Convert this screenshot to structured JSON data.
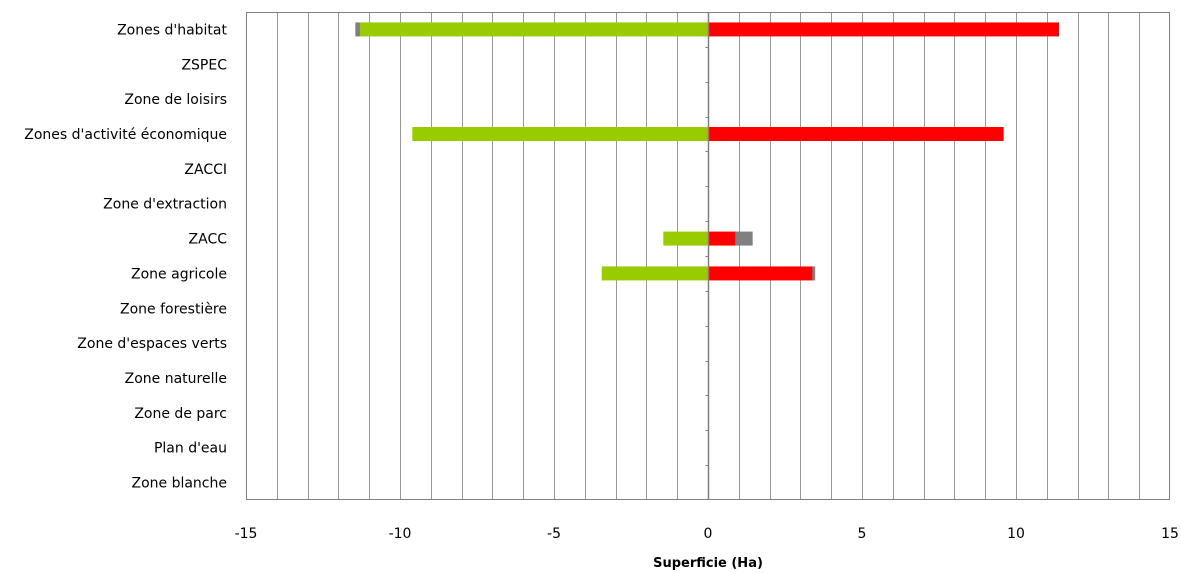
{
  "chart_data": {
    "type": "bar",
    "orientation": "horizontal",
    "stacked": true,
    "categories": [
      "Zones d'habitat",
      "ZSPEC",
      "Zone de loisirs",
      "Zones d'activité économique",
      "ZACCI",
      "Zone d'extraction",
      "ZACC",
      "Zone agricole",
      "Zone forestière",
      "Zone d'espaces verts",
      "Zone naturelle",
      "Zone de parc",
      "Plan d'eau",
      "Zone blanche"
    ],
    "series": [
      {
        "color": "#99cc00",
        "values": [
          -11.3,
          0,
          0,
          -9.6,
          0,
          0,
          -1.45,
          -3.45,
          0,
          0,
          0,
          0,
          0,
          0
        ]
      },
      {
        "color": "#808080",
        "values": [
          -0.15,
          0,
          0,
          0,
          0,
          0,
          0,
          0,
          0,
          0,
          0,
          0,
          0,
          0
        ]
      },
      {
        "color": "#ff0000",
        "values": [
          11.4,
          0,
          0,
          9.6,
          0,
          0,
          0.9,
          3.4,
          0,
          0,
          0,
          0,
          0,
          0
        ]
      },
      {
        "color": "#808080",
        "values": [
          0,
          0,
          0,
          0,
          0,
          0,
          0.55,
          0.08,
          0,
          0,
          0,
          0,
          0,
          0
        ]
      }
    ],
    "xlim": [
      -15,
      15
    ],
    "xticks": [
      "-15",
      "-10",
      "-5",
      "0",
      "5",
      "10",
      "15"
    ],
    "xlabel": "Superficie (Ha)",
    "ylabel": "",
    "title": "",
    "grid": true,
    "colors": {
      "grid": "#999999",
      "axis": "#808080",
      "frame": "#808080"
    }
  }
}
